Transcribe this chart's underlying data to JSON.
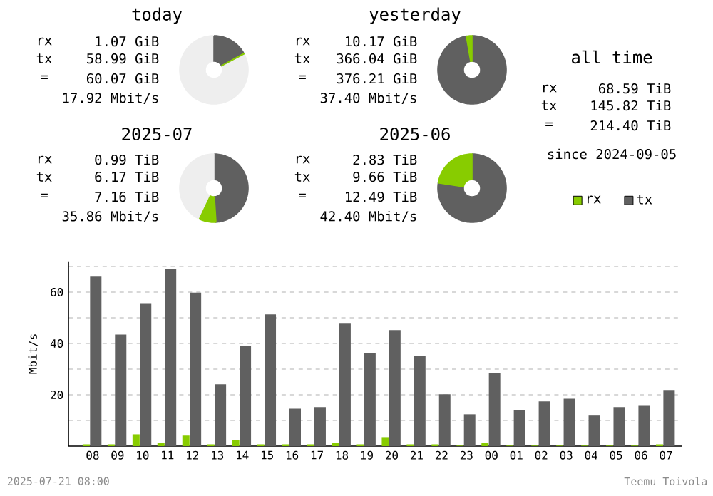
{
  "chart_data": [
    {
      "type": "donut",
      "title": "today",
      "categories": [
        null,
        null,
        null
      ],
      "values": [
        17,
        0.3,
        82.7
      ],
      "colors": [
        "#606060",
        "#88cc00",
        "#eeeeee"
      ],
      "annotations": [
        "rx",
        "1.07 GiB",
        "tx",
        "58.99 GiB",
        "=",
        "60.07 GiB",
        "17.92 Mbit/s"
      ]
    },
    {
      "type": "donut",
      "title": "yesterday",
      "categories": [
        null,
        null
      ],
      "values": [
        97.3,
        2.7
      ],
      "colors": [
        "#606060",
        "#88cc00"
      ],
      "annotations": [
        "rx",
        "10.17 GiB",
        "tx",
        "366.04 GiB",
        "=",
        "376.21 GiB",
        "37.40 Mbit/s"
      ]
    },
    {
      "type": "donut",
      "title": "2025-07",
      "categories": [
        null,
        null,
        null
      ],
      "values": [
        49,
        8,
        43
      ],
      "colors": [
        "#606060",
        "#88cc00",
        "#eeeeee"
      ],
      "annotations": [
        "rx",
        "0.99 TiB",
        "tx",
        "6.17 TiB",
        "=",
        "7.16 TiB",
        "35.86 Mbit/s"
      ]
    },
    {
      "type": "donut",
      "title": "2025-06",
      "categories": [
        null,
        null
      ],
      "values": [
        77.4,
        22.6
      ],
      "colors": [
        "#606060",
        "#88cc00"
      ],
      "annotations": [
        "rx",
        "2.83 TiB",
        "tx",
        "9.66 TiB",
        "=",
        "12.49 TiB",
        "42.40 Mbit/s"
      ]
    },
    {
      "type": "other",
      "title": "all time",
      "annotations": [
        "rx",
        "68.59 TiB",
        "tx",
        "145.82 TiB",
        "=",
        "214.40 TiB",
        "since 2024-09-05"
      ]
    },
    {
      "type": "bar",
      "ylabel": "Mbit/s",
      "categories": [
        "08",
        "09",
        "10",
        "11",
        "12",
        "13",
        "14",
        "15",
        "16",
        "17",
        "18",
        "19",
        "20",
        "21",
        "22",
        "23",
        "00",
        "01",
        "02",
        "03",
        "04",
        "05",
        "06",
        "07"
      ],
      "series": [
        {
          "name": "rx",
          "color": "#88cc00",
          "values": [
            0.7,
            0.7,
            4.6,
            1.3,
            4.1,
            0.7,
            2.4,
            0.7,
            0.7,
            0.7,
            1.3,
            0.7,
            3.5,
            0.7,
            0.7,
            0.2,
            1.3,
            0.2,
            0.2,
            0.2,
            0.2,
            0.2,
            0.2,
            0.7
          ]
        },
        {
          "name": "tx",
          "color": "#606060",
          "values": [
            66.3,
            43.5,
            55.7,
            69.1,
            59.8,
            24.1,
            39.1,
            51.3,
            14.6,
            15.2,
            48.0,
            36.3,
            45.2,
            35.2,
            20.2,
            12.4,
            28.5,
            14.1,
            17.4,
            18.5,
            11.9,
            15.2,
            15.7,
            21.9
          ]
        }
      ],
      "ylim": [
        0,
        72
      ],
      "yticks": [
        {
          "value": 10,
          "label": null
        },
        20,
        {
          "value": 30,
          "label": null
        },
        40,
        {
          "value": 50,
          "label": null
        },
        60,
        {
          "value": 70,
          "label": null
        }
      ],
      "grid": "y",
      "legend": "top right",
      "annotations": [
        "2025-07-21 08:00",
        "Teemu Toivola"
      ]
    }
  ]
}
